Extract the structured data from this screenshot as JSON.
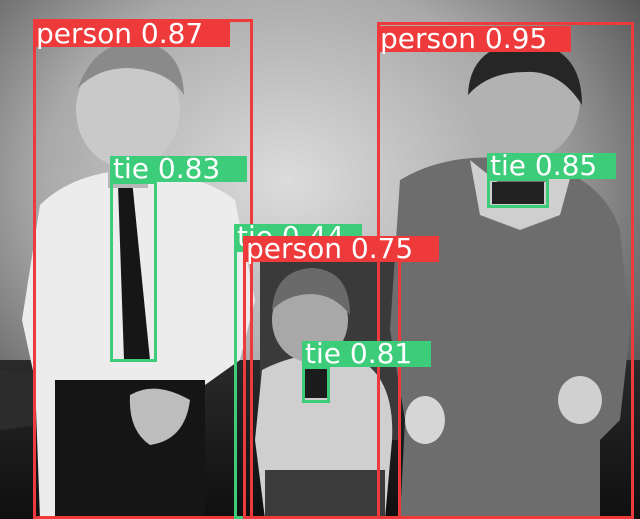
{
  "colors": {
    "person": "#ee3a3a",
    "tie": "#3ccc7a",
    "label_text": "#ffffff"
  },
  "detections": [
    {
      "class": "person",
      "score": "0.87",
      "text": "person 0.87"
    },
    {
      "class": "person",
      "score": "0.95",
      "text": "person 0.95"
    },
    {
      "class": "person",
      "score": "0.75",
      "text": "person 0.75"
    },
    {
      "class": "tie",
      "score": "0.83",
      "text": "tie 0.83"
    },
    {
      "class": "tie",
      "score": "0.85",
      "text": "tie 0.85"
    },
    {
      "class": "tie",
      "score": "0.44",
      "text": "tie 0.44"
    },
    {
      "class": "tie",
      "score": "0.81",
      "text": "tie 0.81"
    }
  ]
}
